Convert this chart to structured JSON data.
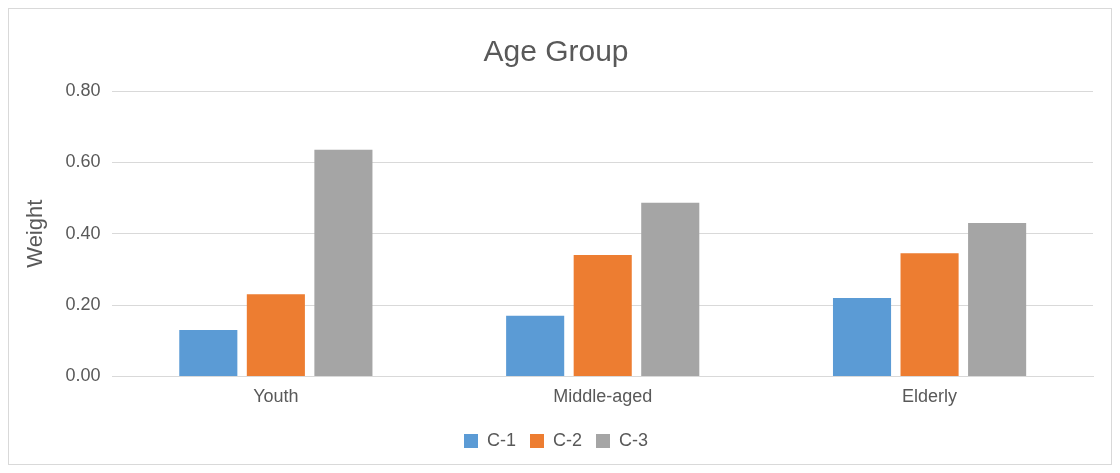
{
  "chart_data": {
    "type": "bar",
    "title": "Age Group",
    "ylabel": "Weight",
    "categories": [
      "Youth",
      "Middle-aged",
      "Elderly"
    ],
    "series": [
      {
        "name": "C-1",
        "color": "#5b9bd5",
        "values": [
          0.13,
          0.17,
          0.22
        ]
      },
      {
        "name": "C-2",
        "color": "#ed7d31",
        "values": [
          0.23,
          0.34,
          0.345
        ]
      },
      {
        "name": "C-3",
        "color": "#a5a5a5",
        "values": [
          0.635,
          0.487,
          0.43
        ]
      }
    ],
    "ylim": [
      0,
      0.8
    ],
    "yticks": [
      {
        "value": 0,
        "label": "0.00"
      },
      {
        "value": 0.2,
        "label": "0.20"
      },
      {
        "value": 0.4,
        "label": "0.40"
      },
      {
        "value": 0.6,
        "label": "0.60"
      },
      {
        "value": 0.8,
        "label": "0.80"
      }
    ],
    "grid": "y",
    "legend": "bottom"
  }
}
